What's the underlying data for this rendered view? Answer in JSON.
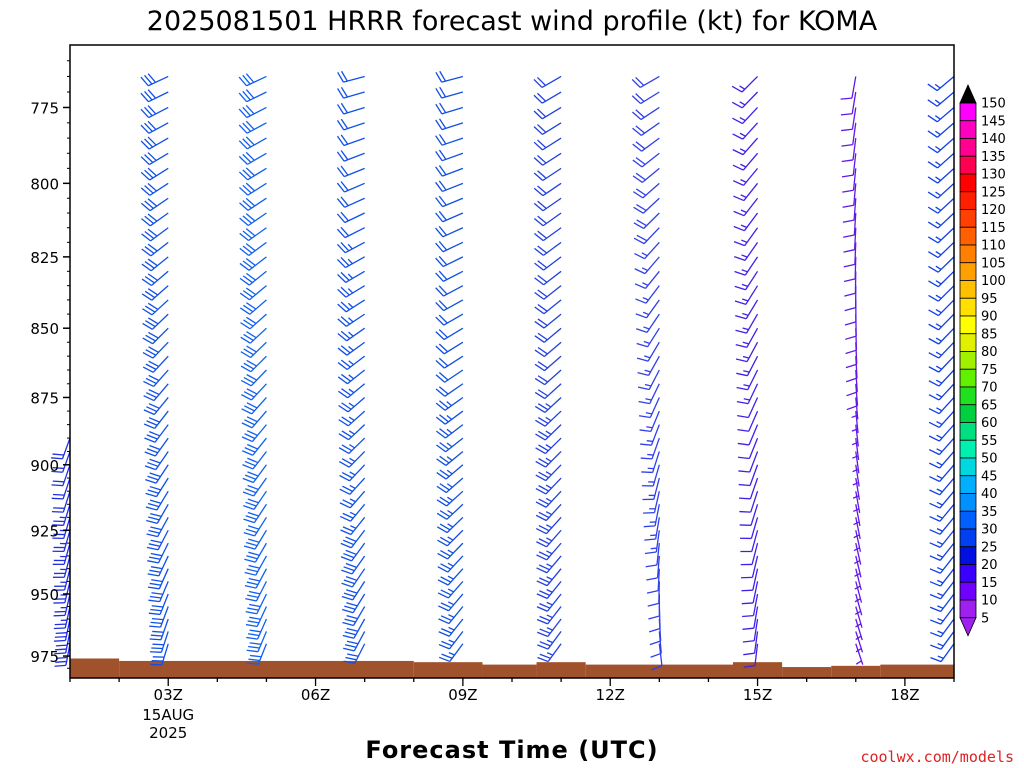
{
  "title": "2025081501 HRRR forecast wind profile (kt) for KOMA",
  "credit": "coolwx.com/models",
  "chart_data": {
    "type": "wind-barb-time-height",
    "xlabel": "Forecast Time (UTC)",
    "x_ticks": [
      {
        "hour": 3,
        "label": "03Z",
        "sub1": "15AUG",
        "sub2": "2025"
      },
      {
        "hour": 6,
        "label": "06Z"
      },
      {
        "hour": 9,
        "label": "09Z"
      },
      {
        "hour": 12,
        "label": "12Z"
      },
      {
        "hour": 15,
        "label": "15Z"
      },
      {
        "hour": 18,
        "label": "18Z"
      }
    ],
    "xlim": [
      1,
      19
    ],
    "ylim": [
      984,
      755
    ],
    "y_scale": "log-pressure",
    "y_ticks": [
      775,
      800,
      825,
      850,
      875,
      900,
      925,
      950,
      975
    ],
    "colorbar": {
      "levels": [
        5,
        10,
        15,
        20,
        25,
        30,
        35,
        40,
        45,
        50,
        55,
        60,
        65,
        70,
        75,
        80,
        85,
        90,
        95,
        100,
        105,
        110,
        115,
        120,
        125,
        130,
        135,
        140,
        145,
        150
      ],
      "colors": [
        "#a020f0",
        "#7000ff",
        "#3a00ff",
        "#0010e0",
        "#0040f0",
        "#0060ff",
        "#0090ff",
        "#00b0ff",
        "#00d8e0",
        "#00f0b0",
        "#00e080",
        "#00d040",
        "#20e020",
        "#60f000",
        "#a0f000",
        "#e0f000",
        "#ffff00",
        "#ffe000",
        "#ffc000",
        "#ffa000",
        "#ff8000",
        "#ff6000",
        "#ff4000",
        "#ff2000",
        "#ff0000",
        "#ff0050",
        "#ff0090",
        "#ff00c0",
        "#ff00ff",
        "#000000"
      ]
    },
    "levels_hpa": [
      970,
      965,
      960,
      955,
      950,
      945,
      940,
      935,
      930,
      925,
      920,
      915,
      910,
      905,
      900,
      895,
      890,
      885,
      880,
      875,
      870,
      865,
      860,
      855,
      850,
      845,
      840,
      835,
      830,
      825,
      820,
      815,
      810,
      805,
      800,
      795,
      790,
      785,
      780,
      775,
      770,
      765
    ],
    "columns": [
      {
        "hour": 1,
        "surface_hpa": 977,
        "top_hpa": 890,
        "dir_bottom": 190,
        "dir_top": 200,
        "spd_bottom": 30,
        "spd_top": 20,
        "color": "#2030e0"
      },
      {
        "hour": 3,
        "surface_hpa": 978,
        "top_hpa": 765,
        "dir_bottom": 195,
        "dir_top": 245,
        "spd_bottom": 30,
        "spd_top": 30,
        "color": "#1050e8"
      },
      {
        "hour": 5,
        "surface_hpa": 978,
        "top_hpa": 765,
        "dir_bottom": 200,
        "dir_top": 245,
        "spd_bottom": 30,
        "spd_top": 30,
        "color": "#1060f0"
      },
      {
        "hour": 7,
        "surface_hpa": 978,
        "top_hpa": 765,
        "dir_bottom": 205,
        "dir_top": 255,
        "spd_bottom": 30,
        "spd_top": 20,
        "color": "#1050e8"
      },
      {
        "hour": 9,
        "surface_hpa": 978,
        "top_hpa": 765,
        "dir_bottom": 215,
        "dir_top": 255,
        "spd_bottom": 25,
        "spd_top": 20,
        "color": "#1050e0"
      },
      {
        "hour": 11,
        "surface_hpa": 979,
        "top_hpa": 765,
        "dir_bottom": 215,
        "dir_top": 240,
        "spd_bottom": 25,
        "spd_top": 20,
        "color": "#2040e0"
      },
      {
        "hour": 13,
        "surface_hpa": 980,
        "top_hpa": 765,
        "dir_bottom": 170,
        "dir_top": 240,
        "spd_bottom": 10,
        "spd_top": 20,
        "color": "#3040e8"
      },
      {
        "hour": 15,
        "surface_hpa": 980,
        "top_hpa": 765,
        "dir_bottom": 185,
        "dir_top": 225,
        "spd_bottom": 10,
        "spd_top": 15,
        "color": "#4020e8"
      },
      {
        "hour": 17,
        "surface_hpa": 981,
        "top_hpa": 765,
        "dir_bottom": 160,
        "dir_top": 190,
        "spd_bottom": 5,
        "spd_top": 10,
        "color": "#6018e8"
      },
      {
        "hour": 19,
        "surface_hpa": 981,
        "top_hpa": 765,
        "dir_bottom": 215,
        "dir_top": 230,
        "spd_bottom": 15,
        "spd_top": 15,
        "color": "#1040e8"
      }
    ],
    "terrain_color": "#a0522d",
    "terrain_hpa": [
      {
        "from": 1,
        "to": 2,
        "hpa": 976
      },
      {
        "from": 2,
        "to": 8,
        "hpa": 977
      },
      {
        "from": 8,
        "to": 9.4,
        "hpa": 977.5
      },
      {
        "from": 9.4,
        "to": 10.5,
        "hpa": 978.5
      },
      {
        "from": 10.5,
        "to": 11.5,
        "hpa": 977.5
      },
      {
        "from": 11.5,
        "to": 14.5,
        "hpa": 978.5
      },
      {
        "from": 14.5,
        "to": 15.5,
        "hpa": 977.5
      },
      {
        "from": 15.5,
        "to": 16.5,
        "hpa": 979.5
      },
      {
        "from": 16.5,
        "to": 17.5,
        "hpa": 979
      },
      {
        "from": 17.5,
        "to": 19,
        "hpa": 978.5
      }
    ]
  }
}
